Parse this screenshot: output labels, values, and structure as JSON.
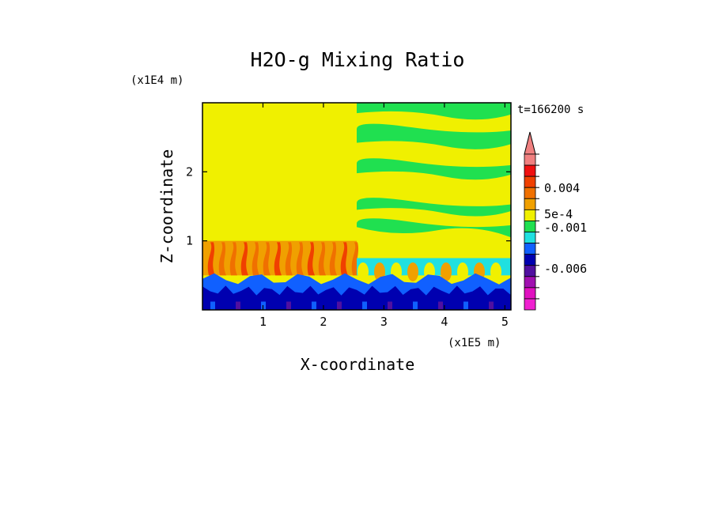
{
  "chart_data": {
    "type": "heatmap",
    "title": "H2O-g Mixing Ratio",
    "xlabel": "X-coordinate",
    "ylabel": "Z-coordinate",
    "x_scale_label": "(x1E5 m)",
    "y_scale_label": "(x1E4 m)",
    "time_label": "t=166200 s",
    "xlim": [
      0,
      5.1
    ],
    "ylim": [
      0,
      3.0
    ],
    "x_ticks": [
      "1",
      "2",
      "3",
      "4",
      "5"
    ],
    "y_ticks": [
      "1",
      "2"
    ],
    "colorbar_labels": [
      "0.004",
      "5e-4",
      "-0.001",
      "-0.006"
    ],
    "colorbar": {
      "top_arrow_color": "#f08080",
      "levels": [
        {
          "color": "#f08080"
        },
        {
          "color": "#f01010"
        },
        {
          "color": "#f04000"
        },
        {
          "color": "#f07000"
        },
        {
          "color": "#f0a000"
        },
        {
          "color": "#f0f000"
        },
        {
          "color": "#20e050"
        },
        {
          "color": "#20e0e0"
        },
        {
          "color": "#1060ff"
        },
        {
          "color": "#0000b0"
        },
        {
          "color": "#5010a0"
        },
        {
          "color": "#a010b0"
        },
        {
          "color": "#e010c0"
        },
        {
          "color": "#f020d0"
        }
      ]
    },
    "regions": [
      {
        "name": "upper-left",
        "x": [
          0,
          2.55
        ],
        "z": [
          1.0,
          3.0
        ],
        "color": "#f0f000"
      },
      {
        "name": "lower-left-orange",
        "x": [
          0,
          2.55
        ],
        "z": [
          0.5,
          1.0
        ],
        "color": "#f0a000"
      },
      {
        "name": "upper-right",
        "x": [
          2.55,
          5.1
        ],
        "z": [
          0.7,
          3.0
        ],
        "color": "#f0f000"
      },
      {
        "name": "bottom",
        "x": [
          0,
          5.1
        ],
        "z": [
          0,
          0.5
        ],
        "color": "#0000b0"
      }
    ]
  }
}
